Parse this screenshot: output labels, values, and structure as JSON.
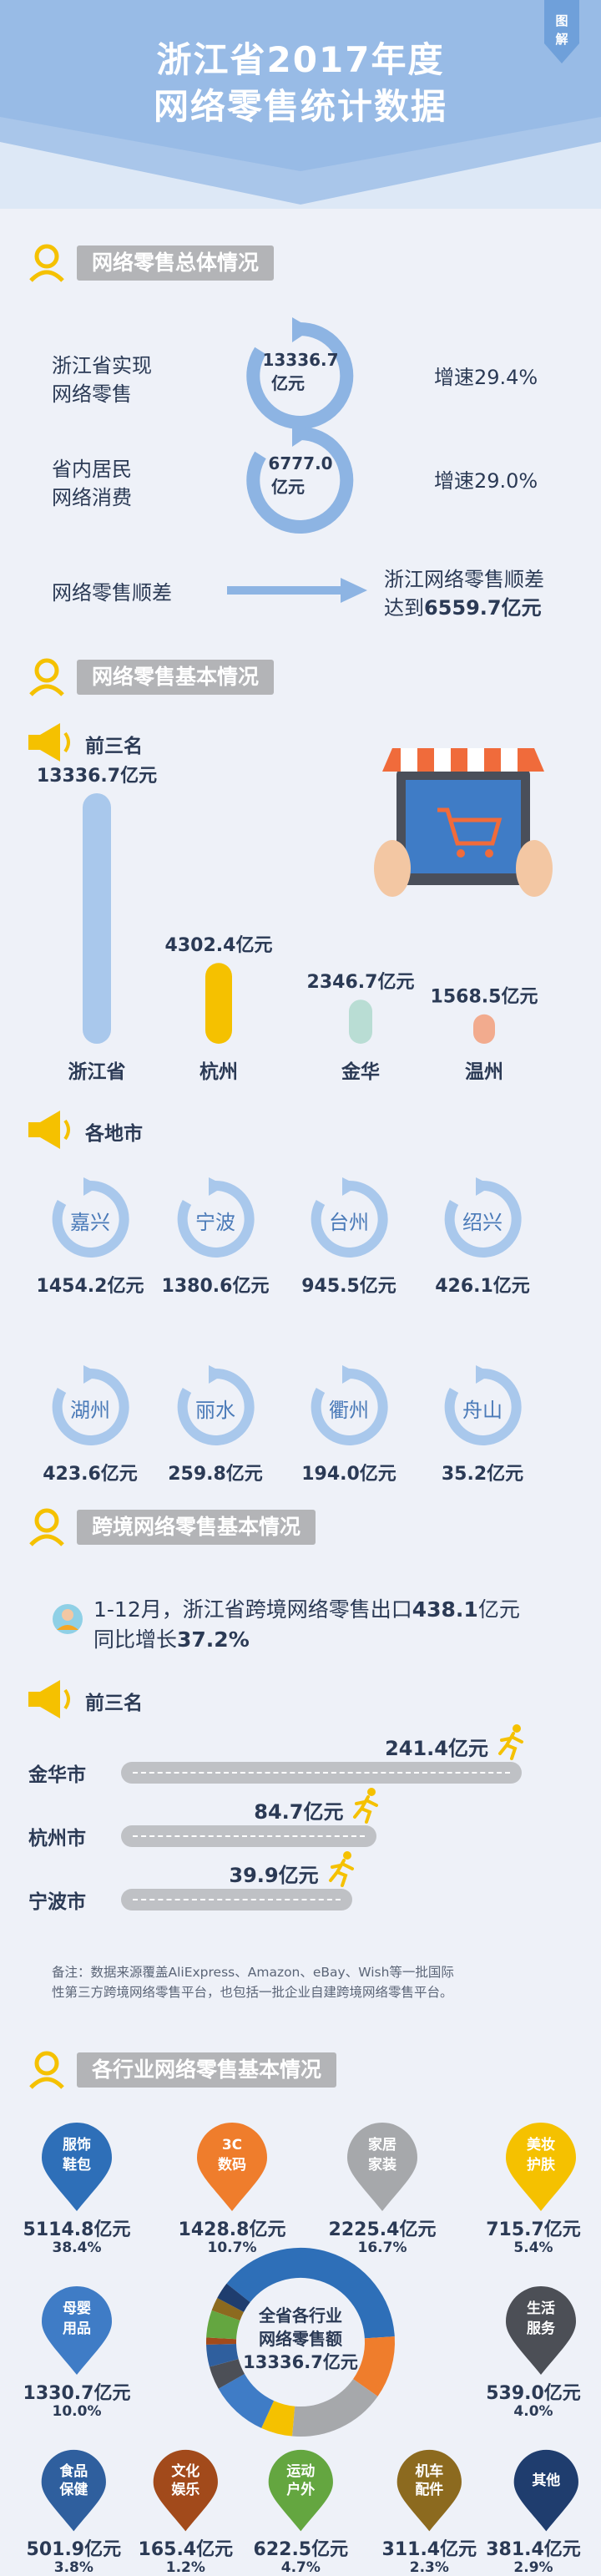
{
  "header": {
    "title_line1": "浙江省2017年度",
    "title_line2": "网络零售统计数据",
    "tag_line1": "图",
    "tag_line2": "解"
  },
  "section1": {
    "heading": "网络零售总体情况",
    "row1": {
      "label_line1": "浙江省实现",
      "label_line2": "网络零售",
      "ring_line1": "13336.7",
      "ring_line2": "亿元",
      "growth": "增速29.4%"
    },
    "row2": {
      "label_line1": "省内居民",
      "label_line2": "网络消费",
      "ring_line1": "6777.0",
      "ring_line2": "亿元",
      "growth": "增速29.0%"
    },
    "row3": {
      "label": "网络零售顺差",
      "result_line1": "浙江网络零售顺差",
      "result_prefix": "达到",
      "result_value": "6559.7亿元"
    }
  },
  "section2": {
    "heading": "网络零售基本情况",
    "top3_label": "前三名",
    "chart_data": {
      "type": "bar",
      "categories": [
        "浙江省",
        "杭州",
        "金华",
        "温州"
      ],
      "values": [
        13336.7,
        4302.4,
        2346.7,
        1568.5
      ],
      "value_labels": [
        "13336.7亿元",
        "4302.4亿元",
        "2346.7亿元",
        "1568.5亿元"
      ],
      "colors": [
        "#a9c8ec",
        "#f5c100",
        "#b9ddd4",
        "#f2ab8e"
      ]
    },
    "cities_label": "各地市",
    "cities": [
      {
        "name": "嘉兴",
        "value": "1454.2亿元"
      },
      {
        "name": "宁波",
        "value": "1380.6亿元"
      },
      {
        "name": "台州",
        "value": "945.5亿元"
      },
      {
        "name": "绍兴",
        "value": "426.1亿元"
      },
      {
        "name": "湖州",
        "value": "423.6亿元"
      },
      {
        "name": "丽水",
        "value": "259.8亿元"
      },
      {
        "name": "衢州",
        "value": "194.0亿元"
      },
      {
        "name": "舟山",
        "value": "35.2亿元"
      }
    ]
  },
  "section3": {
    "heading": "跨境网络零售基本情况",
    "summary_line1_a": "1-12月，浙江省跨境网络零售出口",
    "summary_line1_b": "438.1",
    "summary_line1_c": "亿元",
    "summary_line2_a": "同比增长",
    "summary_line2_b": "37.2%",
    "top3_label": "前三名",
    "lanes": [
      {
        "city": "金华市",
        "value": "241.4亿元",
        "amount": 241.4
      },
      {
        "city": "杭州市",
        "value": "84.7亿元",
        "amount": 84.7
      },
      {
        "city": "宁波市",
        "value": "39.9亿元",
        "amount": 39.9
      }
    ],
    "note_line1": "备注：数据来源覆盖AliExpress、Amazon、eBay、Wish等一批国际",
    "note_line2": "性第三方跨境网络零售平台，也包括一批企业自建跨境网络零售平台。"
  },
  "section4": {
    "heading": "各行业网络零售基本情况",
    "center_line1": "全省各行业",
    "center_line2": "网络零售额",
    "center_line3": "13336.7亿元",
    "industries": [
      {
        "l1": "服饰",
        "l2": "鞋包",
        "value": "5114.8亿元",
        "pct": "38.4%",
        "share": 38.4,
        "color": "#2e6fb8"
      },
      {
        "l1": "3C",
        "l2": "数码",
        "value": "1428.8亿元",
        "pct": "10.7%",
        "share": 10.7,
        "color": "#ef7d2c"
      },
      {
        "l1": "家居",
        "l2": "家装",
        "value": "2225.4亿元",
        "pct": "16.7%",
        "share": 16.7,
        "color": "#a6a8ab"
      },
      {
        "l1": "美妆",
        "l2": "护肤",
        "value": "715.7亿元",
        "pct": "5.4%",
        "share": 5.4,
        "color": "#f5c100"
      },
      {
        "l1": "母婴",
        "l2": "用品",
        "value": "1330.7亿元",
        "pct": "10.0%",
        "share": 10.0,
        "color": "#3f7cc6"
      },
      {
        "l1": "生活",
        "l2": "服务",
        "value": "539.0亿元",
        "pct": "4.0%",
        "share": 4.0,
        "color": "#4c4f56"
      },
      {
        "l1": "食品",
        "l2": "保健",
        "value": "501.9亿元",
        "pct": "3.8%",
        "share": 3.8,
        "color": "#2f5f9e"
      },
      {
        "l1": "文化",
        "l2": "娱乐",
        "value": "165.4亿元",
        "pct": "1.2%",
        "share": 1.2,
        "color": "#a24a1b"
      },
      {
        "l1": "运动",
        "l2": "户外",
        "value": "622.5亿元",
        "pct": "4.7%",
        "share": 4.7,
        "color": "#64a640"
      },
      {
        "l1": "机车",
        "l2": "配件",
        "value": "311.4亿元",
        "pct": "2.3%",
        "share": 2.3,
        "color": "#8c6a1f"
      },
      {
        "l1": "其他",
        "l2": "",
        "value": "381.4亿元",
        "pct": "2.9%",
        "share": 2.9,
        "color": "#1f3d6e"
      }
    ]
  }
}
